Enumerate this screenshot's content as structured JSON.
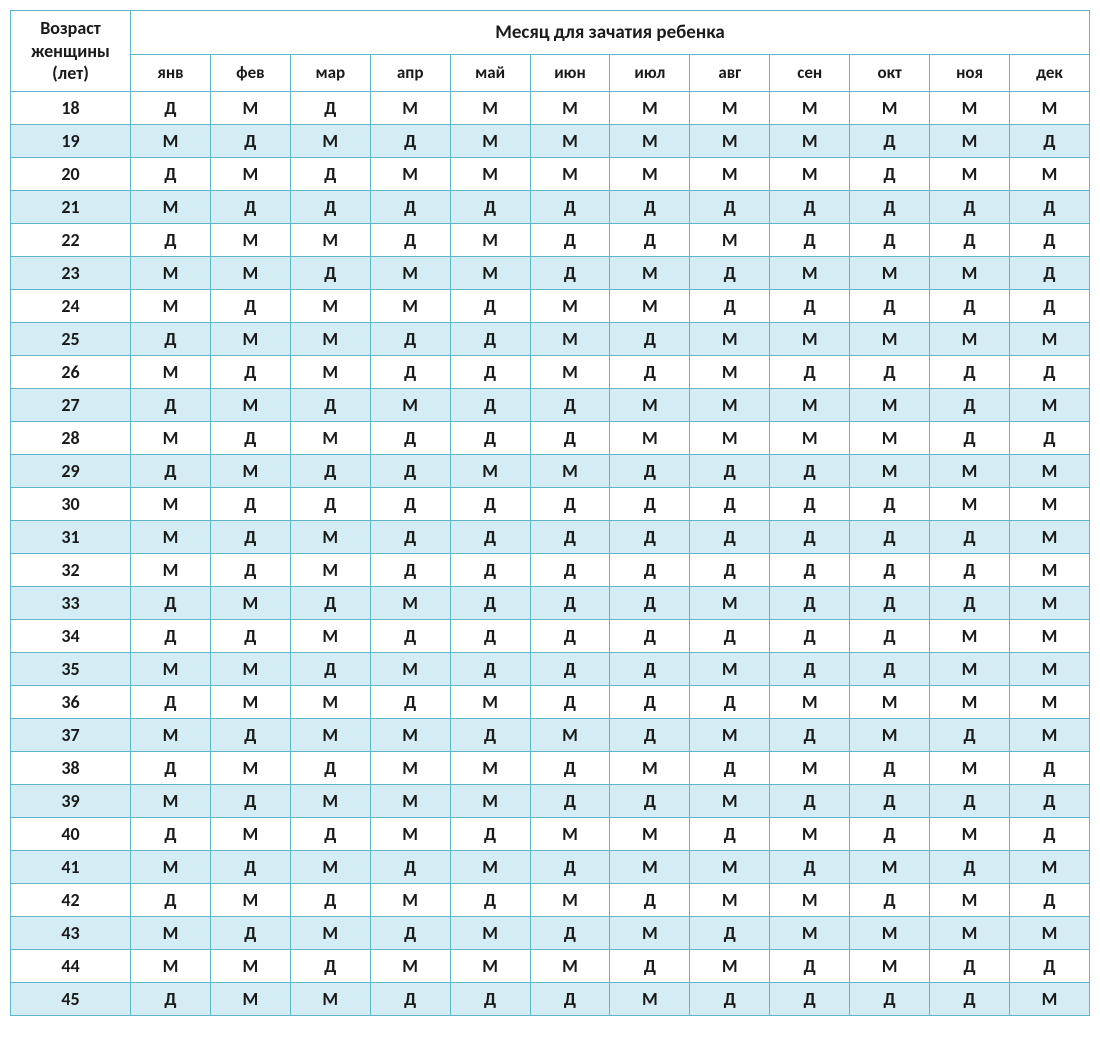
{
  "colors": {
    "border": "#5fb5c9",
    "stripe": "#d4ecf3",
    "plain": "#ffffff",
    "text": "#1a1a1a"
  },
  "headers": {
    "age": "Возраст женщины (лет)",
    "main": "Месяц для зачатия ребенка",
    "months": [
      "янв",
      "фев",
      "мар",
      "апр",
      "май",
      "июн",
      "июл",
      "авг",
      "сен",
      "окт",
      "ноя",
      "дек"
    ]
  },
  "ages": [
    18,
    19,
    20,
    21,
    22,
    23,
    24,
    25,
    26,
    27,
    28,
    29,
    30,
    31,
    32,
    33,
    34,
    35,
    36,
    37,
    38,
    39,
    40,
    41,
    42,
    43,
    44,
    45
  ],
  "rows": [
    [
      "Д",
      "М",
      "Д",
      "М",
      "М",
      "М",
      "М",
      "М",
      "М",
      "М",
      "М",
      "М"
    ],
    [
      "М",
      "Д",
      "М",
      "Д",
      "М",
      "М",
      "М",
      "М",
      "М",
      "Д",
      "М",
      "Д"
    ],
    [
      "Д",
      "М",
      "Д",
      "М",
      "М",
      "М",
      "М",
      "М",
      "М",
      "Д",
      "М",
      "М"
    ],
    [
      "М",
      "Д",
      "Д",
      "Д",
      "Д",
      "Д",
      "Д",
      "Д",
      "Д",
      "Д",
      "Д",
      "Д"
    ],
    [
      "Д",
      "М",
      "М",
      "Д",
      "М",
      "Д",
      "Д",
      "М",
      "Д",
      "Д",
      "Д",
      "Д"
    ],
    [
      "М",
      "М",
      "Д",
      "М",
      "М",
      "Д",
      "М",
      "Д",
      "М",
      "М",
      "М",
      "Д"
    ],
    [
      "М",
      "Д",
      "М",
      "М",
      "Д",
      "М",
      "М",
      "Д",
      "Д",
      "Д",
      "Д",
      "Д"
    ],
    [
      "Д",
      "М",
      "М",
      "Д",
      "Д",
      "М",
      "Д",
      "М",
      "М",
      "М",
      "М",
      "М"
    ],
    [
      "М",
      "Д",
      "М",
      "Д",
      "Д",
      "М",
      "Д",
      "М",
      "Д",
      "Д",
      "Д",
      "Д"
    ],
    [
      "Д",
      "М",
      "Д",
      "М",
      "Д",
      "Д",
      "М",
      "М",
      "М",
      "М",
      "Д",
      "М"
    ],
    [
      "М",
      "Д",
      "М",
      "Д",
      "Д",
      "Д",
      "М",
      "М",
      "М",
      "М",
      "Д",
      "Д"
    ],
    [
      "Д",
      "М",
      "Д",
      "Д",
      "М",
      "М",
      "Д",
      "Д",
      "Д",
      "М",
      "М",
      "М"
    ],
    [
      "М",
      "Д",
      "Д",
      "Д",
      "Д",
      "Д",
      "Д",
      "Д",
      "Д",
      "Д",
      "М",
      "М"
    ],
    [
      "М",
      "Д",
      "М",
      "Д",
      "Д",
      "Д",
      "Д",
      "Д",
      "Д",
      "Д",
      "Д",
      "М"
    ],
    [
      "М",
      "Д",
      "М",
      "Д",
      "Д",
      "Д",
      "Д",
      "Д",
      "Д",
      "Д",
      "Д",
      "М"
    ],
    [
      "Д",
      "М",
      "Д",
      "М",
      "Д",
      "Д",
      "Д",
      "М",
      "Д",
      "Д",
      "Д",
      "М"
    ],
    [
      "Д",
      "Д",
      "М",
      "Д",
      "Д",
      "Д",
      "Д",
      "Д",
      "Д",
      "Д",
      "М",
      "М"
    ],
    [
      "М",
      "М",
      "Д",
      "М",
      "Д",
      "Д",
      "Д",
      "М",
      "Д",
      "Д",
      "М",
      "М"
    ],
    [
      "Д",
      "М",
      "М",
      "Д",
      "М",
      "Д",
      "Д",
      "Д",
      "М",
      "М",
      "М",
      "М"
    ],
    [
      "М",
      "Д",
      "М",
      "М",
      "Д",
      "М",
      "Д",
      "М",
      "Д",
      "М",
      "Д",
      "М"
    ],
    [
      "Д",
      "М",
      "Д",
      "М",
      "М",
      "Д",
      "М",
      "Д",
      "М",
      "Д",
      "М",
      "Д"
    ],
    [
      "М",
      "Д",
      "М",
      "М",
      "М",
      "Д",
      "Д",
      "М",
      "Д",
      "Д",
      "Д",
      "Д"
    ],
    [
      "Д",
      "М",
      "Д",
      "М",
      "Д",
      "М",
      "М",
      "Д",
      "М",
      "Д",
      "М",
      "Д"
    ],
    [
      "М",
      "Д",
      "М",
      "Д",
      "М",
      "Д",
      "М",
      "М",
      "Д",
      "М",
      "Д",
      "М"
    ],
    [
      "Д",
      "М",
      "Д",
      "М",
      "Д",
      "М",
      "Д",
      "М",
      "М",
      "Д",
      "М",
      "Д"
    ],
    [
      "М",
      "Д",
      "М",
      "Д",
      "М",
      "Д",
      "М",
      "Д",
      "М",
      "М",
      "М",
      "М"
    ],
    [
      "М",
      "М",
      "Д",
      "М",
      "М",
      "М",
      "Д",
      "М",
      "Д",
      "М",
      "Д",
      "Д"
    ],
    [
      "Д",
      "М",
      "М",
      "Д",
      "Д",
      "Д",
      "М",
      "Д",
      "Д",
      "Д",
      "Д",
      "М"
    ]
  ]
}
